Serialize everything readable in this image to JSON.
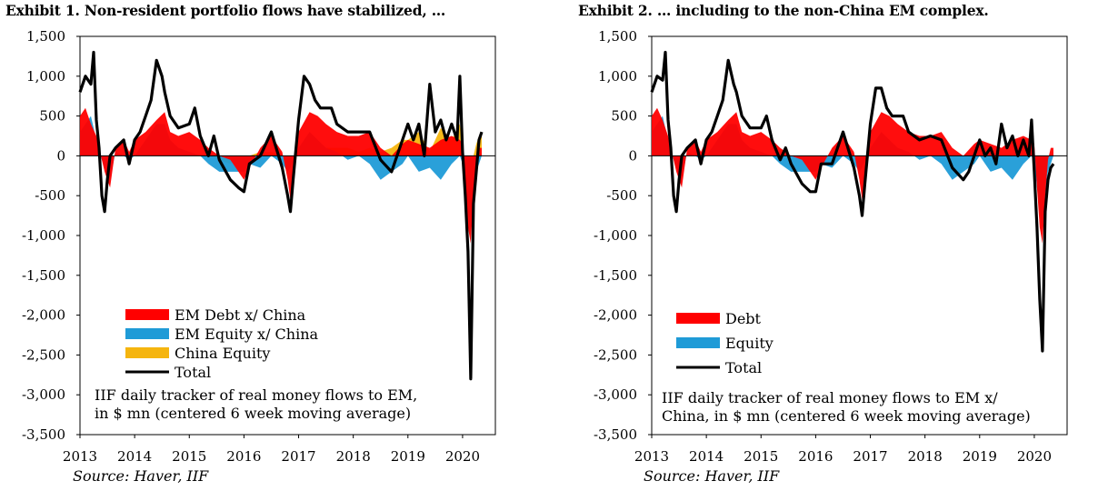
{
  "chart_data": [
    {
      "type": "area",
      "title": "Exhibit 1. Non-resident portfolio flows have stabilized, …",
      "ylim": [
        -3500,
        1500
      ],
      "yticks": [
        "1,500",
        "1,000",
        "500",
        "0",
        "-500",
        "-1,000",
        "-1,500",
        "-2,000",
        "-2,500",
        "-3,000",
        "-3,500"
      ],
      "xlim": [
        2013,
        2020.6
      ],
      "xticks": [
        "2013",
        "2014",
        "2015",
        "2016",
        "2017",
        "2018",
        "2019",
        "2020"
      ],
      "note": [
        "IIF daily tracker of real money flows to EM,",
        "in $ mn (centered 6 week moving average)"
      ],
      "source": "Source: Haver, IIF",
      "legend": [
        "EM Debt x/ China",
        "EM Equity x/ China",
        "China Equity",
        "Total"
      ],
      "colors": {
        "debt": "#ff0000",
        "equity": "#1f9bd7",
        "china": "#f5b50f",
        "total": "#000000"
      },
      "series": [
        {
          "name": "EM Debt x/ China",
          "x": [
            2013.0,
            2013.1,
            2013.2,
            2013.3,
            2013.35,
            2013.45,
            2013.55,
            2013.65,
            2013.8,
            2013.9,
            2014.0,
            2014.2,
            2014.4,
            2014.55,
            2014.65,
            2014.8,
            2015.0,
            2015.2,
            2015.35,
            2015.55,
            2015.75,
            2016.0,
            2016.1,
            2016.3,
            2016.5,
            2016.7,
            2016.8,
            2016.85,
            2017.0,
            2017.2,
            2017.35,
            2017.5,
            2017.7,
            2017.9,
            2018.1,
            2018.3,
            2018.5,
            2018.7,
            2018.9,
            2019.0,
            2019.2,
            2019.4,
            2019.6,
            2019.8,
            2019.95,
            2020.0,
            2020.05,
            2020.1,
            2020.15,
            2020.2,
            2020.25,
            2020.3,
            2020.35
          ],
          "values": [
            500,
            600,
            400,
            250,
            100,
            -200,
            -400,
            100,
            200,
            50,
            200,
            300,
            450,
            550,
            300,
            250,
            300,
            200,
            100,
            0,
            -50,
            -300,
            -150,
            100,
            250,
            50,
            -300,
            -550,
            300,
            550,
            500,
            400,
            300,
            250,
            250,
            300,
            100,
            0,
            150,
            200,
            150,
            100,
            200,
            250,
            200,
            150,
            -400,
            -900,
            -1100,
            -500,
            -50,
            100,
            100
          ]
        },
        {
          "name": "EM Equity x/ China",
          "x": [
            2013.0,
            2013.1,
            2013.2,
            2013.3,
            2013.35,
            2013.45,
            2013.55,
            2013.65,
            2013.8,
            2013.9,
            2014.0,
            2014.2,
            2014.4,
            2014.55,
            2014.65,
            2014.8,
            2015.0,
            2015.2,
            2015.35,
            2015.55,
            2015.75,
            2016.0,
            2016.1,
            2016.3,
            2016.5,
            2016.7,
            2016.8,
            2016.85,
            2017.0,
            2017.2,
            2017.35,
            2017.5,
            2017.7,
            2017.9,
            2018.1,
            2018.3,
            2018.5,
            2018.7,
            2018.9,
            2019.0,
            2019.2,
            2019.4,
            2019.6,
            2019.8,
            2019.95,
            2020.0,
            2020.05,
            2020.1,
            2020.15,
            2020.2,
            2020.25,
            2020.3,
            2020.35
          ],
          "values": [
            300,
            400,
            500,
            200,
            50,
            -150,
            -300,
            50,
            0,
            -50,
            0,
            200,
            400,
            400,
            200,
            100,
            50,
            0,
            -100,
            -200,
            -200,
            -200,
            -100,
            -150,
            0,
            -100,
            -200,
            -150,
            100,
            300,
            200,
            100,
            50,
            -50,
            0,
            -100,
            -300,
            -200,
            -100,
            0,
            -200,
            -150,
            -300,
            -100,
            0,
            -100,
            -400,
            -700,
            -1000,
            -500,
            -200,
            -100,
            0
          ]
        },
        {
          "name": "China Equity",
          "x": [
            2013.0,
            2013.1,
            2013.2,
            2013.3,
            2013.35,
            2013.45,
            2013.55,
            2013.65,
            2013.8,
            2013.9,
            2014.0,
            2014.2,
            2014.4,
            2014.55,
            2014.65,
            2014.8,
            2015.0,
            2015.2,
            2015.35,
            2015.55,
            2015.75,
            2016.0,
            2016.1,
            2016.3,
            2016.5,
            2016.7,
            2016.8,
            2016.85,
            2017.0,
            2017.2,
            2017.35,
            2017.5,
            2017.7,
            2017.9,
            2018.1,
            2018.3,
            2018.5,
            2018.7,
            2018.9,
            2019.0,
            2019.2,
            2019.4,
            2019.6,
            2019.8,
            2019.95,
            2020.0,
            2020.05,
            2020.1,
            2020.15,
            2020.2,
            2020.25,
            2020.3,
            2020.35
          ],
          "values": [
            0,
            0,
            0,
            0,
            0,
            0,
            0,
            0,
            0,
            0,
            0,
            0,
            0,
            0,
            0,
            0,
            0,
            0,
            0,
            -50,
            -100,
            0,
            0,
            50,
            50,
            0,
            0,
            0,
            0,
            50,
            100,
            100,
            100,
            100,
            50,
            100,
            50,
            100,
            200,
            200,
            300,
            50,
            350,
            200,
            400,
            100,
            -100,
            -200,
            -200,
            0,
            150,
            250,
            300
          ]
        },
        {
          "name": "Total",
          "x": [
            2013.0,
            2013.1,
            2013.2,
            2013.25,
            2013.3,
            2013.35,
            2013.4,
            2013.45,
            2013.5,
            2013.55,
            2013.65,
            2013.8,
            2013.9,
            2014.0,
            2014.1,
            2014.2,
            2014.3,
            2014.4,
            2014.5,
            2014.55,
            2014.65,
            2014.8,
            2015.0,
            2015.1,
            2015.2,
            2015.35,
            2015.45,
            2015.55,
            2015.75,
            2015.9,
            2016.0,
            2016.1,
            2016.3,
            2016.5,
            2016.7,
            2016.8,
            2016.85,
            2016.9,
            2017.0,
            2017.1,
            2017.2,
            2017.3,
            2017.4,
            2017.5,
            2017.6,
            2017.7,
            2017.9,
            2018.1,
            2018.3,
            2018.5,
            2018.7,
            2018.8,
            2018.9,
            2019.0,
            2019.1,
            2019.2,
            2019.3,
            2019.4,
            2019.5,
            2019.6,
            2019.7,
            2019.8,
            2019.9,
            2019.95,
            2020.0,
            2020.05,
            2020.1,
            2020.15,
            2020.2,
            2020.25,
            2020.3,
            2020.35
          ],
          "values": [
            800,
            1000,
            900,
            1300,
            450,
            100,
            -500,
            -700,
            -300,
            0,
            100,
            200,
            -100,
            200,
            300,
            500,
            700,
            1200,
            1000,
            800,
            500,
            350,
            400,
            600,
            250,
            0,
            250,
            -50,
            -300,
            -400,
            -450,
            -100,
            0,
            300,
            -150,
            -500,
            -700,
            -300,
            450,
            1000,
            900,
            700,
            600,
            600,
            600,
            400,
            300,
            300,
            300,
            -50,
            -200,
            0,
            200,
            400,
            200,
            400,
            0,
            900,
            300,
            450,
            200,
            400,
            200,
            1000,
            50,
            -500,
            -1200,
            -2800,
            -600,
            -200,
            200,
            300
          ]
        }
      ]
    },
    {
      "type": "area",
      "title": "Exhibit 2. … including to the non-China EM complex.",
      "ylim": [
        -3500,
        1500
      ],
      "yticks": [
        "1,500",
        "1,000",
        "500",
        "0",
        "-500",
        "-1,000",
        "-1,500",
        "-2,000",
        "-2,500",
        "-3,000",
        "-3,500"
      ],
      "xlim": [
        2013,
        2020.6
      ],
      "xticks": [
        "2013",
        "2014",
        "2015",
        "2016",
        "2017",
        "2018",
        "2019",
        "2020"
      ],
      "note": [
        "IIF daily tracker of real money flows to EM x/",
        "China, in $ mn (centered 6 week moving average)"
      ],
      "source": "Source: Haver, IIF",
      "legend": [
        "Debt",
        "Equity",
        "Total"
      ],
      "colors": {
        "debt": "#ff0000",
        "equity": "#1f9bd7",
        "total": "#000000"
      },
      "series": [
        {
          "name": "Debt",
          "x": [
            2013.0,
            2013.1,
            2013.2,
            2013.3,
            2013.35,
            2013.45,
            2013.55,
            2013.65,
            2013.8,
            2013.9,
            2014.0,
            2014.2,
            2014.4,
            2014.55,
            2014.65,
            2014.8,
            2015.0,
            2015.2,
            2015.35,
            2015.55,
            2015.75,
            2016.0,
            2016.1,
            2016.3,
            2016.5,
            2016.7,
            2016.8,
            2016.85,
            2017.0,
            2017.2,
            2017.35,
            2017.5,
            2017.7,
            2017.9,
            2018.1,
            2018.3,
            2018.5,
            2018.7,
            2018.9,
            2019.0,
            2019.2,
            2019.4,
            2019.6,
            2019.8,
            2019.95,
            2020.0,
            2020.05,
            2020.1,
            2020.15,
            2020.2,
            2020.25,
            2020.3,
            2020.35
          ],
          "values": [
            500,
            600,
            450,
            250,
            100,
            -200,
            -400,
            100,
            200,
            50,
            200,
            300,
            450,
            550,
            300,
            250,
            300,
            200,
            100,
            0,
            -50,
            -300,
            -150,
            100,
            250,
            50,
            -300,
            -550,
            300,
            550,
            500,
            400,
            300,
            250,
            250,
            300,
            100,
            0,
            150,
            200,
            150,
            100,
            200,
            250,
            200,
            150,
            -400,
            -900,
            -1100,
            -500,
            -50,
            100,
            100
          ]
        },
        {
          "name": "Equity",
          "x": [
            2013.0,
            2013.1,
            2013.2,
            2013.3,
            2013.35,
            2013.45,
            2013.55,
            2013.65,
            2013.8,
            2013.9,
            2014.0,
            2014.2,
            2014.4,
            2014.55,
            2014.65,
            2014.8,
            2015.0,
            2015.2,
            2015.35,
            2015.55,
            2015.75,
            2016.0,
            2016.1,
            2016.3,
            2016.5,
            2016.7,
            2016.8,
            2016.85,
            2017.0,
            2017.2,
            2017.35,
            2017.5,
            2017.7,
            2017.9,
            2018.1,
            2018.3,
            2018.5,
            2018.7,
            2018.9,
            2019.0,
            2019.2,
            2019.4,
            2019.6,
            2019.8,
            2019.95,
            2020.0,
            2020.05,
            2020.1,
            2020.15,
            2020.2,
            2020.25,
            2020.3,
            2020.35
          ],
          "values": [
            300,
            400,
            500,
            200,
            50,
            -150,
            -300,
            50,
            0,
            -50,
            0,
            200,
            400,
            400,
            200,
            100,
            50,
            0,
            -100,
            -200,
            -200,
            -200,
            -100,
            -150,
            0,
            -100,
            -200,
            -150,
            100,
            300,
            200,
            100,
            50,
            -50,
            0,
            -100,
            -300,
            -200,
            -100,
            0,
            -200,
            -150,
            -300,
            -100,
            0,
            -100,
            -400,
            -700,
            -1000,
            -500,
            -200,
            -100,
            0
          ]
        },
        {
          "name": "Total",
          "x": [
            2013.0,
            2013.1,
            2013.2,
            2013.25,
            2013.3,
            2013.35,
            2013.4,
            2013.45,
            2013.5,
            2013.55,
            2013.65,
            2013.8,
            2013.9,
            2014.0,
            2014.1,
            2014.2,
            2014.3,
            2014.4,
            2014.5,
            2014.55,
            2014.65,
            2014.8,
            2015.0,
            2015.1,
            2015.2,
            2015.35,
            2015.45,
            2015.55,
            2015.75,
            2015.9,
            2016.0,
            2016.1,
            2016.3,
            2016.5,
            2016.7,
            2016.8,
            2016.85,
            2016.9,
            2017.0,
            2017.1,
            2017.2,
            2017.3,
            2017.4,
            2017.5,
            2017.6,
            2017.7,
            2017.9,
            2018.1,
            2018.3,
            2018.5,
            2018.7,
            2018.8,
            2018.9,
            2019.0,
            2019.1,
            2019.2,
            2019.3,
            2019.4,
            2019.5,
            2019.6,
            2019.7,
            2019.8,
            2019.9,
            2019.95,
            2020.0,
            2020.05,
            2020.1,
            2020.15,
            2020.2,
            2020.25,
            2020.3,
            2020.35
          ],
          "values": [
            800,
            1000,
            950,
            1300,
            450,
            100,
            -500,
            -700,
            -300,
            0,
            100,
            200,
            -100,
            200,
            300,
            500,
            700,
            1200,
            900,
            800,
            500,
            350,
            350,
            500,
            200,
            -50,
            100,
            -100,
            -350,
            -450,
            -450,
            -100,
            -100,
            300,
            -150,
            -500,
            -750,
            -350,
            400,
            850,
            850,
            600,
            500,
            500,
            500,
            300,
            200,
            250,
            200,
            -150,
            -300,
            -200,
            0,
            200,
            0,
            100,
            -100,
            400,
            100,
            250,
            0,
            200,
            0,
            450,
            -200,
            -900,
            -1800,
            -2450,
            -700,
            -300,
            -150,
            -100
          ]
        }
      ]
    }
  ]
}
